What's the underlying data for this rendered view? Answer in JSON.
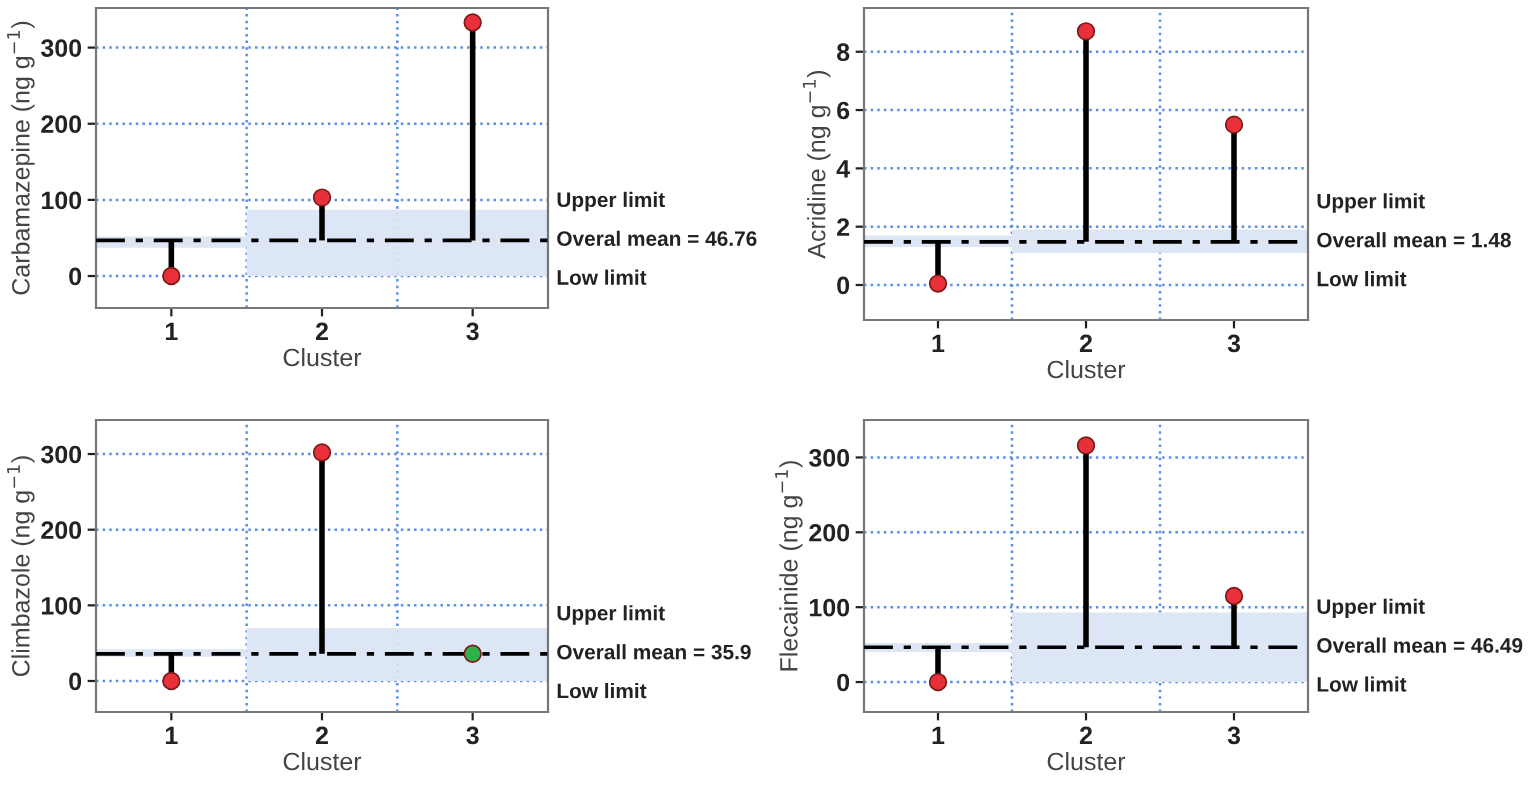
{
  "chart_data": [
    {
      "type": "scatter",
      "ylabel": "Carbamazepine (ng g$^{−1}$)",
      "xlabel": "Cluster",
      "categories": [
        "1",
        "2",
        "3"
      ],
      "ylim": [
        -42,
        352
      ],
      "yticks": [
        0,
        100,
        200,
        300
      ],
      "grid": true,
      "marker": "circle",
      "series": [
        {
          "values": [
            0,
            103,
            333
          ],
          "errors": [
            [
              0,
              46.76
            ],
            [
              46.76,
              103
            ],
            [
              46.76,
              333
            ]
          ],
          "colors": [
            "#e8303a",
            "#e8303a",
            "#e8303a"
          ]
        },
        {
          "type": "bar",
          "color": "#dce6f5",
          "base": [
            37,
            0,
            0
          ],
          "values": [
            15,
            87,
            87
          ]
        }
      ],
      "ref_lines": [
        {
          "axis": "y",
          "value": 46.76,
          "label": "Overal mean = 46.76",
          "line_style": "dashed",
          "color": "#000000"
        }
      ],
      "annotations": [
        "Upper limit",
        "Low limit"
      ]
    },
    {
      "type": "scatter",
      "ylabel": "Acridine (ng g$^{−1}$)",
      "xlabel": "Cluster",
      "categories": [
        "1",
        "2",
        "3"
      ],
      "ylim": [
        -1.2,
        9.5
      ],
      "yticks": [
        0,
        2,
        4,
        6,
        8
      ],
      "grid": true,
      "marker": "circle",
      "series": [
        {
          "values": [
            0.05,
            8.7,
            5.5
          ],
          "errors": [
            [
              0.05,
              1.48
            ],
            [
              1.48,
              8.7
            ],
            [
              1.48,
              5.5
            ]
          ],
          "colors": [
            "#e8303a",
            "#e8303a",
            "#e8303a"
          ]
        },
        {
          "type": "bar",
          "color": "#dce6f5",
          "base": [
            1.3,
            1.1,
            1.1
          ],
          "values": [
            0.4,
            0.8,
            0.8
          ]
        }
      ],
      "ref_lines": [
        {
          "axis": "y",
          "value": 1.48,
          "label": "Overall mean = 1.48",
          "line_style": "dashed",
          "color": "#000000"
        }
      ],
      "annotations": [
        "Upper limit",
        "Low limit"
      ]
    },
    {
      "type": "scatter",
      "ylabel": "Climbazole (ng g$^{−1}$)",
      "xlabel": "Cluster",
      "categories": [
        "1",
        "2",
        "3"
      ],
      "ylim": [
        -41,
        345
      ],
      "yticks": [
        0,
        100,
        200,
        300
      ],
      "grid": true,
      "marker": "circle",
      "series": [
        {
          "values": [
            0,
            302,
            36
          ],
          "errors": [
            [
              0,
              35.9
            ],
            [
              35.9,
              302
            ],
            null
          ],
          "colors": [
            "#e8303a",
            "#e8303a",
            "#2db34a"
          ]
        },
        {
          "type": "bar",
          "color": "#dce6f5",
          "base": [
            32,
            0,
            0
          ],
          "values": [
            10,
            70,
            70
          ]
        }
      ],
      "ref_lines": [
        {
          "axis": "y",
          "value": 35.9,
          "label": "Overall mean = 35.9",
          "line_style": "dashed",
          "color": "#000000"
        }
      ],
      "annotations": [
        "Upper limit",
        "Low limit"
      ]
    },
    {
      "type": "scatter",
      "ylabel": "Flecainide (ng g$^{−1}$)",
      "xlabel": "Cluster",
      "categories": [
        "1",
        "2",
        "3"
      ],
      "ylim": [
        -40,
        350
      ],
      "yticks": [
        0,
        100,
        200,
        300
      ],
      "grid": true,
      "marker": "circle",
      "series": [
        {
          "values": [
            0,
            316,
            115
          ],
          "errors": [
            [
              0,
              46.49
            ],
            [
              46.49,
              316
            ],
            [
              46.49,
              115
            ]
          ],
          "colors": [
            "#e8303a",
            "#e8303a",
            "#e8303a"
          ]
        },
        {
          "type": "bar",
          "color": "#dce6f5",
          "base": [
            40,
            0,
            0
          ],
          "values": [
            12,
            93,
            93
          ]
        }
      ],
      "ref_lines": [
        {
          "axis": "y",
          "value": 46.49,
          "label": "Overall mean = 46.49",
          "line_style": "dashed",
          "color": "#000000"
        }
      ],
      "annotations": [
        "Upper limit",
        "Low limit"
      ]
    }
  ]
}
